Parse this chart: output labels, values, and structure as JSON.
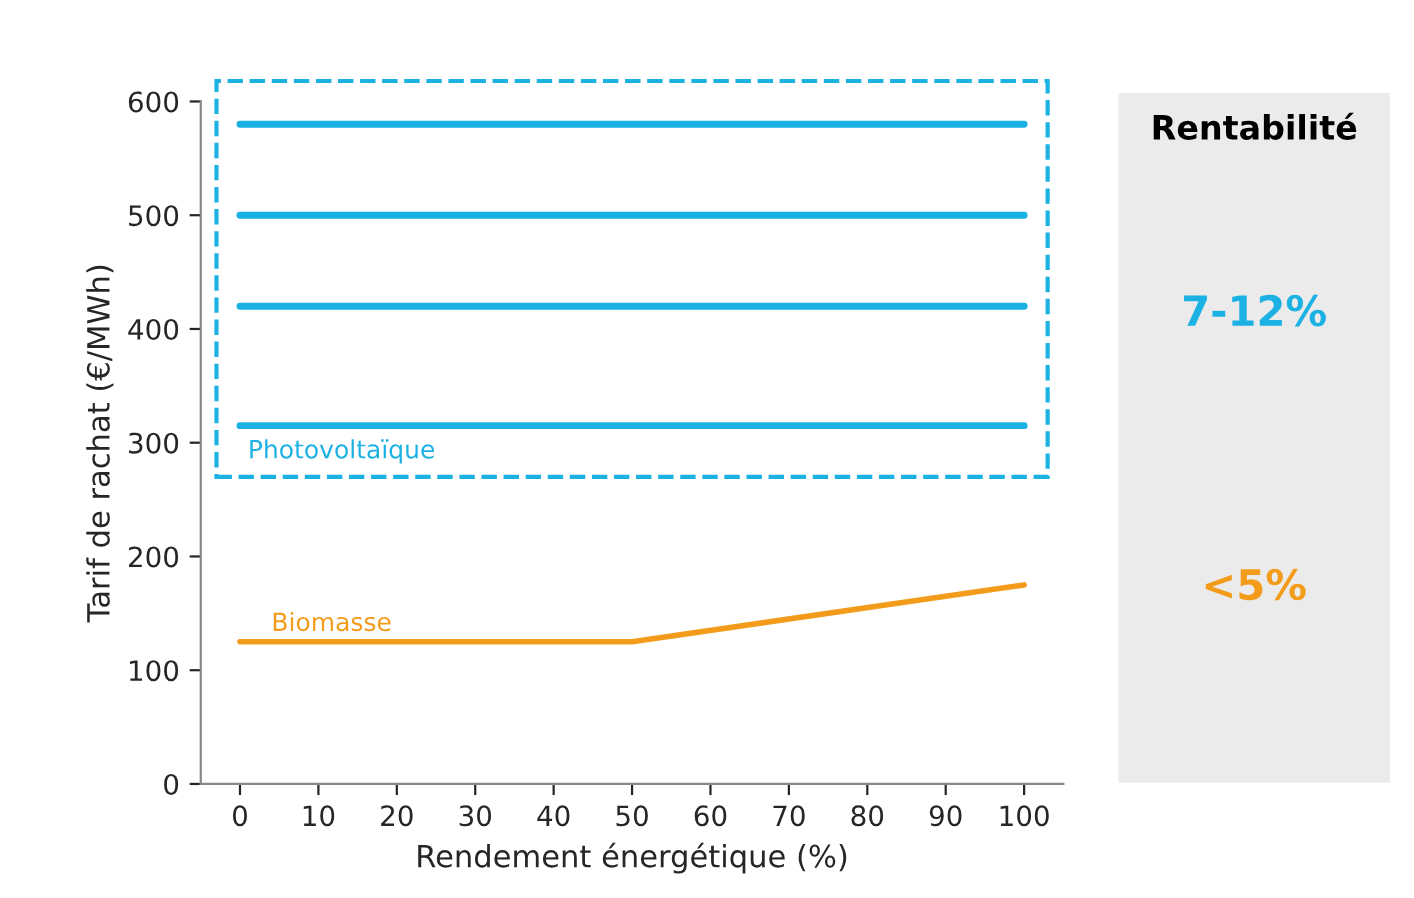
{
  "chart_data": {
    "type": "line",
    "xlabel": "Rendement énergétique (%)",
    "ylabel": "Tarif de rachat (€/MWh)",
    "series": [
      {
        "color": "#1cb1e3",
        "x": [
          0,
          100
        ],
        "values": [
          580,
          580
        ]
      },
      {
        "color": "#1cb1e3",
        "x": [
          0,
          100
        ],
        "values": [
          500,
          500
        ]
      },
      {
        "color": "#1cb1e3",
        "x": [
          0,
          100
        ],
        "values": [
          420,
          420
        ]
      },
      {
        "name": "Photovoltaïque",
        "color": "#1cb1e3",
        "x": [
          0,
          100
        ],
        "values": [
          315,
          315
        ]
      },
      {
        "name": "Biomasse",
        "color": "#f39c1b",
        "x": [
          0,
          50,
          100
        ],
        "values": [
          125,
          125,
          175
        ]
      }
    ],
    "xlim": [
      -5,
      105
    ],
    "xticks": [
      0,
      10,
      20,
      30,
      40,
      50,
      60,
      70,
      80,
      90,
      100
    ],
    "ylim": [
      0,
      600
    ],
    "yticks": [
      0,
      100,
      200,
      300,
      400,
      500,
      600
    ],
    "grid": false,
    "legend": false,
    "marker": "none",
    "line_style": "solid",
    "annotations": [
      "Rentabilité",
      "7-12%",
      "<5%"
    ]
  }
}
